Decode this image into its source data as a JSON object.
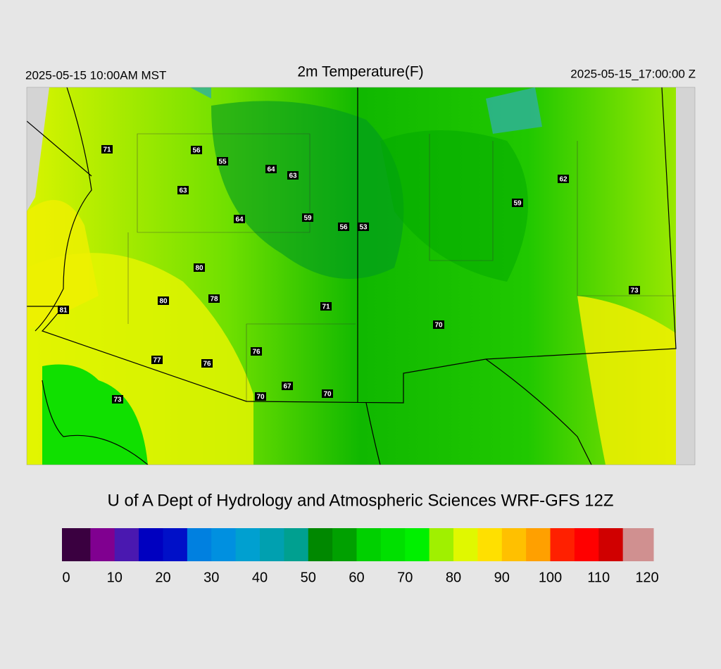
{
  "header": {
    "left": "2025-05-15 10:00AM MST",
    "title": "2m Temperature(F)",
    "right": "2025-05-15_17:00:00 Z"
  },
  "map": {
    "stations": [
      71,
      56,
      55,
      64,
      63,
      63,
      64,
      59,
      56,
      53,
      62,
      59,
      80,
      80,
      78,
      81,
      71,
      70,
      73,
      76,
      77,
      76,
      67,
      70,
      70,
      73
    ]
  },
  "credit": "U of A Dept of Hydrology and Atmospheric Sciences WRF-GFS 12Z",
  "colorbar": {
    "segments": [
      "#3a0040",
      "#800090",
      "#4a18b0",
      "#0000c0",
      "#0010c8",
      "#0080e0",
      "#0090e0",
      "#00a0d0",
      "#00a0b0",
      "#00a090",
      "#008800",
      "#00a000",
      "#00d000",
      "#00e000",
      "#00f000",
      "#a0f000",
      "#e0f800",
      "#ffe000",
      "#ffc000",
      "#ffa000",
      "#ff2000",
      "#ff0000",
      "#d00000",
      "#d09090"
    ],
    "ticks": [
      0,
      10,
      20,
      30,
      40,
      50,
      60,
      70,
      80,
      90,
      100,
      110,
      120
    ]
  }
}
